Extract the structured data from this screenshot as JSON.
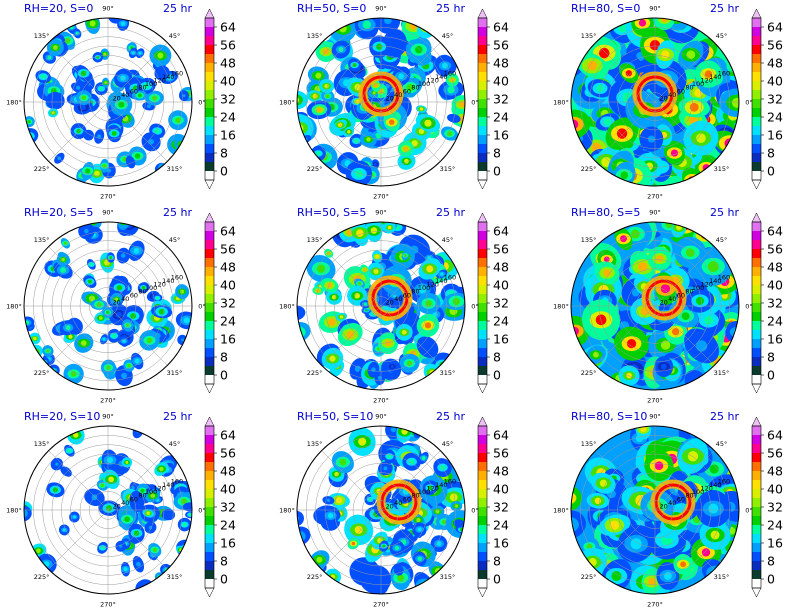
{
  "chart_data": {
    "type": "polar-contour-grid",
    "time_label": "25 hr",
    "colorbar": {
      "ticks": [
        0,
        8,
        16,
        24,
        32,
        40,
        48,
        56,
        64
      ],
      "levels": [
        0,
        4,
        8,
        12,
        16,
        20,
        24,
        28,
        32,
        36,
        40,
        44,
        48,
        52,
        56,
        60,
        64,
        68
      ],
      "colors": [
        "#0b3a2e",
        "#0a2dbf",
        "#0050ff",
        "#00a0ff",
        "#00e0ff",
        "#00ff9a",
        "#00d000",
        "#40e000",
        "#90f000",
        "#d8f000",
        "#ffe000",
        "#ffb000",
        "#ff7000",
        "#ff0000",
        "#ff0090",
        "#d000e0",
        "#e070f0",
        "#f0c0f8"
      ],
      "extend": "both"
    },
    "angle_labels": [
      "0°",
      "45°",
      "90°",
      "135°",
      "180°",
      "225°",
      "270°",
      "315°"
    ],
    "radial_labels": [
      "20",
      "40",
      "60",
      "80",
      "100",
      "120",
      "140",
      "160"
    ],
    "r_max": 180,
    "panels": [
      {
        "title": "RH=20, S=0",
        "rh": 20,
        "shear": 0
      },
      {
        "title": "RH=50, S=0",
        "rh": 50,
        "shear": 0
      },
      {
        "title": "RH=80, S=0",
        "rh": 80,
        "shear": 0
      },
      {
        "title": "RH=20, S=5",
        "rh": 20,
        "shear": 5
      },
      {
        "title": "RH=50, S=5",
        "rh": 50,
        "shear": 5
      },
      {
        "title": "RH=80, S=5",
        "rh": 80,
        "shear": 5
      },
      {
        "title": "RH=20, S=10",
        "rh": 20,
        "shear": 10
      },
      {
        "title": "RH=50, S=10",
        "rh": 50,
        "shear": 10
      },
      {
        "title": "RH=80, S=10",
        "rh": 80,
        "shear": 10
      }
    ]
  }
}
